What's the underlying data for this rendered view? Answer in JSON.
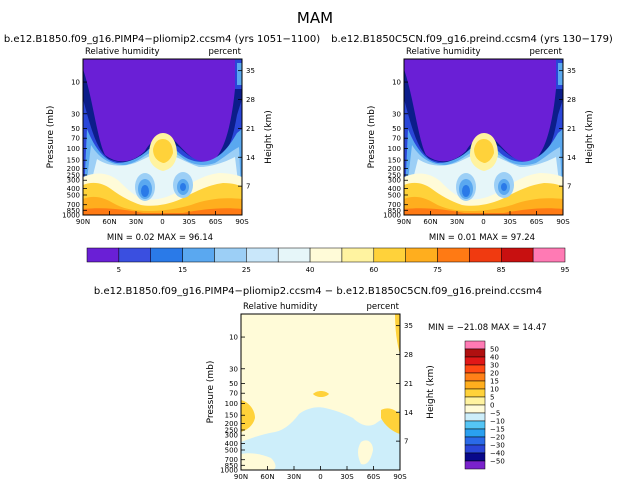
{
  "main_title": "MAM",
  "panels": [
    {
      "title": "b.e12.B1850.f09_g16.PIMP4−pliomip2.ccsm4 (yrs 1051−1100)",
      "left_label": "Relative humidity",
      "right_label": "percent",
      "min_text": "MIN =   0.02   MAX =  96.14",
      "ylabel": "Pressure (mb)",
      "y2label": "Height (km)"
    },
    {
      "title": "b.e12.B1850C5CN.f09_g16.preind.ccsm4 (yrs 130−179)",
      "left_label": "Relative humidity",
      "right_label": "percent",
      "min_text": "MIN =   0.01   MAX =  97.24",
      "ylabel": "Pressure (mb)",
      "y2label": "Height (km)"
    },
    {
      "title": "b.e12.B1850.f09_g16.PIMP4−pliomip2.ccsm4 − b.e12.B1850C5CN.f09_g16.preind.ccsm4",
      "left_label": "Relative humidity",
      "right_label": "percent",
      "min_text": "MIN = −21.08   MAX =  14.47",
      "ylabel": "Pressure (mb)",
      "y2label": "Height (km)"
    }
  ],
  "chart_data": [
    {
      "type": "heatmap",
      "title": "b.e12.B1850.f09_g16.PIMP4−pliomip2.ccsm4 (yrs 1051−1100)",
      "subtitle_left": "Relative humidity",
      "subtitle_right": "percent",
      "xlabel": "",
      "ylabel": "Pressure (mb)",
      "y2label": "Height (km)",
      "x_ticks": [
        "90N",
        "60N",
        "30N",
        "0",
        "30S",
        "60S",
        "90S"
      ],
      "y_ticks": [
        "10",
        "30",
        "50",
        "70",
        "100",
        "150",
        "200",
        "250",
        "300",
        "400",
        "500",
        "700",
        "850",
        "1000"
      ],
      "y_major_labels": [
        "10",
        "30",
        "50",
        "70",
        "100",
        "150",
        "200",
        "250",
        "300",
        "400",
        "500",
        "700",
        "850",
        "1000"
      ],
      "y2_ticks": [
        "35",
        "28",
        "21",
        "14",
        "7"
      ],
      "min": 0.02,
      "max": 96.14
    },
    {
      "type": "heatmap",
      "title": "b.e12.B1850C5CN.f09_g16.preind.ccsm4 (yrs 130−179)",
      "subtitle_left": "Relative humidity",
      "subtitle_right": "percent",
      "xlabel": "",
      "ylabel": "Pressure (mb)",
      "y2label": "Height (km)",
      "x_ticks": [
        "90N",
        "60N",
        "30N",
        "0",
        "30S",
        "60S",
        "90S"
      ],
      "y_ticks": [
        "10",
        "30",
        "50",
        "70",
        "100",
        "150",
        "200",
        "250",
        "300",
        "400",
        "500",
        "700",
        "850",
        "1000"
      ],
      "y2_ticks": [
        "35",
        "28",
        "21",
        "14",
        "7"
      ],
      "min": 0.01,
      "max": 97.24
    },
    {
      "type": "heatmap",
      "title": "b.e12.B1850.f09_g16.PIMP4−pliomip2.ccsm4 − b.e12.B1850C5CN.f09_g16.preind.ccsm4",
      "subtitle_left": "Relative humidity",
      "subtitle_right": "percent",
      "xlabel": "",
      "ylabel": "Pressure (mb)",
      "y2label": "Height (km)",
      "x_ticks": [
        "90N",
        "60N",
        "30N",
        "0",
        "30S",
        "60S",
        "90S"
      ],
      "y_ticks": [
        "10",
        "30",
        "50",
        "70",
        "100",
        "150",
        "200",
        "250",
        "300",
        "400",
        "500",
        "700",
        "850",
        "1000"
      ],
      "y2_ticks": [
        "35",
        "28",
        "21",
        "14",
        "7"
      ],
      "min": -21.08,
      "max": 14.47
    }
  ],
  "colorbar_abs": {
    "labels": [
      "5",
      "15",
      "25",
      "40",
      "60",
      "75",
      "85",
      "95"
    ],
    "colors": [
      "#6a1fd6",
      "#3a4fe0",
      "#2a7ae8",
      "#5aa8f0",
      "#9ccff6",
      "#c9e7fa",
      "#e6f6f9",
      "#fffbd8",
      "#fff3a0",
      "#ffd23a",
      "#ffae1e",
      "#ff7a14",
      "#f03a10",
      "#c81010",
      "#ff7ab4"
    ]
  },
  "colorbar_diff": {
    "labels": [
      "50",
      "40",
      "30",
      "20",
      "15",
      "10",
      "5",
      "0",
      "−5",
      "−10",
      "−15",
      "−20",
      "−30",
      "−40",
      "−50"
    ],
    "colors": [
      "#ff7ab4",
      "#b01010",
      "#e01818",
      "#ff4a14",
      "#ff8018",
      "#ffae1e",
      "#ffd23a",
      "#fff3a0",
      "#fffbd8",
      "#cdeefa",
      "#55c5f5",
      "#2aa0f0",
      "#2a6ae8",
      "#2a46d8",
      "#08088a",
      "#7a22cc"
    ]
  }
}
